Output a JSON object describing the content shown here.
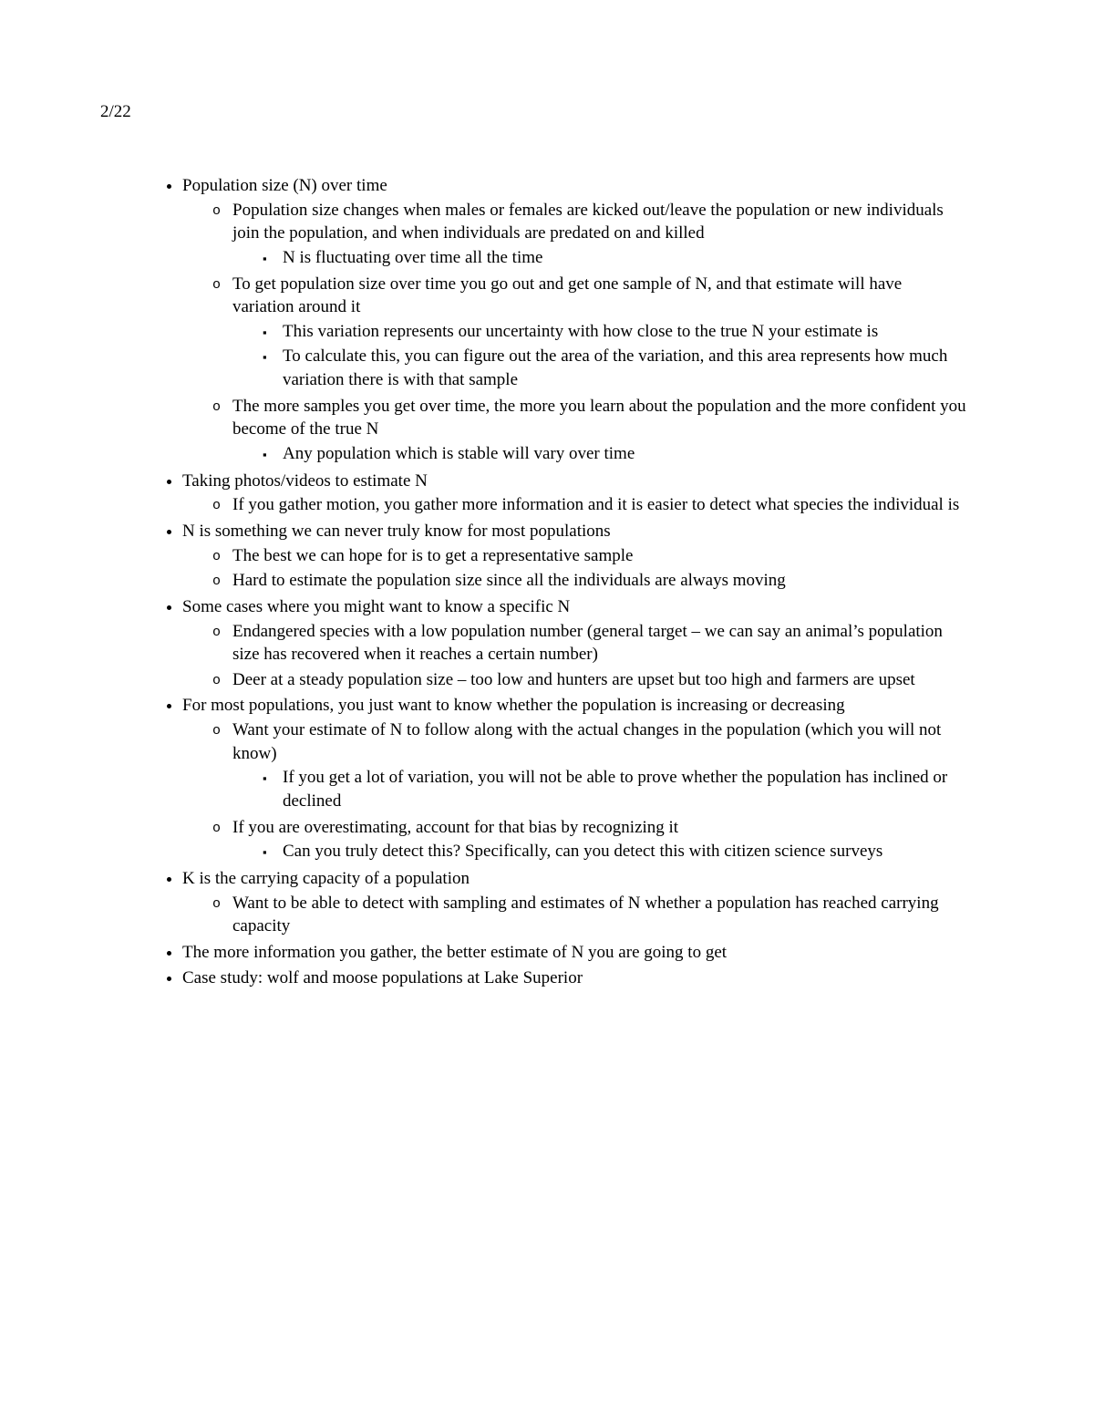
{
  "date": "2/22",
  "b": [
    {
      "t": "Population size (N) over time",
      "c": [
        {
          "t": "Population size changes when males or females are kicked out/leave the population or new individuals join the population, and when individuals are predated on and killed",
          "c": [
            {
              "t": "N is fluctuating over time all the time"
            }
          ]
        },
        {
          "t": "To get population size over time you go out and get one sample of N, and that estimate will have variation around it",
          "c": [
            {
              "t": "This variation represents our uncertainty with how close to the true N your estimate is"
            },
            {
              "t": "To calculate this, you can figure out the area of the variation, and this area represents how much variation there is with that sample"
            }
          ]
        },
        {
          "t": "The more samples you get over time, the more you learn about the population and the more confident you become of the true N",
          "c": [
            {
              "t": "Any population which is stable will vary over time"
            }
          ]
        }
      ]
    },
    {
      "t": "Taking photos/videos to estimate N",
      "c": [
        {
          "t": "If you gather motion, you gather more information and it is easier to detect what species the individual is"
        }
      ]
    },
    {
      "t": "N is something we can never truly know for most populations",
      "c": [
        {
          "t": "The best we can hope for is to get a representative sample"
        },
        {
          "t": "Hard to estimate the population size since all the individuals are always moving"
        }
      ]
    },
    {
      "t": "Some cases where you might want to know a specific N",
      "c": [
        {
          "t": "Endangered species with a low population number (general target – we can say an animal’s population size has recovered when it reaches a certain number)"
        },
        {
          "t": "Deer at a steady population size – too low and hunters are upset but too high and farmers are upset"
        }
      ]
    },
    {
      "t": "For most populations, you just want to know whether the population is increasing or decreasing",
      "c": [
        {
          "t": "Want your estimate of N to follow along with the actual changes in the population (which you will not know)",
          "c": [
            {
              "t": "If you get a lot of variation, you will not be able to prove whether the population has inclined or declined"
            }
          ]
        },
        {
          "t": "If you are overestimating, account for that bias by recognizing it",
          "c": [
            {
              "t": "Can you truly detect this? Specifically, can you detect this with citizen science surveys"
            }
          ]
        }
      ]
    },
    {
      "t": "K is the carrying capacity of a population",
      "c": [
        {
          "t": "Want to be able to detect with sampling and estimates of N whether a population has reached carrying capacity"
        }
      ]
    },
    {
      "t": "The more information you gather, the better estimate of N you are going to get"
    },
    {
      "t": "Case study: wolf and moose populations at Lake Superior"
    }
  ]
}
